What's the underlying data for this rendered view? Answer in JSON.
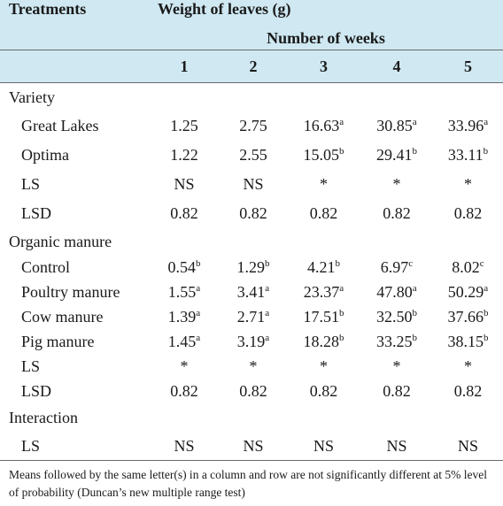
{
  "header": {
    "treatments": "Treatments",
    "title": "Weight of leaves (g)",
    "subtitle": "Number of weeks",
    "weeks": [
      "1",
      "2",
      "3",
      "4",
      "5"
    ]
  },
  "sections": [
    {
      "label": "Variety",
      "rows": [
        {
          "label": "Great Lakes",
          "cells": [
            {
              "v": "1.25",
              "s": ""
            },
            {
              "v": "2.75",
              "s": ""
            },
            {
              "v": "16.63",
              "s": "a"
            },
            {
              "v": "30.85",
              "s": "a"
            },
            {
              "v": "33.96",
              "s": "a"
            }
          ]
        },
        {
          "label": "Optima",
          "cells": [
            {
              "v": "1.22",
              "s": ""
            },
            {
              "v": "2.55",
              "s": ""
            },
            {
              "v": "15.05",
              "s": "b"
            },
            {
              "v": "29.41",
              "s": "b"
            },
            {
              "v": "33.11",
              "s": "b"
            }
          ]
        },
        {
          "label": "LS",
          "cells": [
            {
              "v": "NS",
              "s": ""
            },
            {
              "v": "NS",
              "s": ""
            },
            {
              "v": "*",
              "s": ""
            },
            {
              "v": "*",
              "s": ""
            },
            {
              "v": "*",
              "s": ""
            }
          ]
        },
        {
          "label": "LSD",
          "cells": [
            {
              "v": "0.82",
              "s": ""
            },
            {
              "v": "0.82",
              "s": ""
            },
            {
              "v": "0.82",
              "s": ""
            },
            {
              "v": "0.82",
              "s": ""
            },
            {
              "v": "0.82",
              "s": ""
            }
          ]
        }
      ]
    },
    {
      "label": "Organic manure",
      "rows": [
        {
          "label": "Control",
          "cells": [
            {
              "v": "0.54",
              "s": "b"
            },
            {
              "v": "1.29",
              "s": "b"
            },
            {
              "v": "4.21",
              "s": "b"
            },
            {
              "v": "6.97",
              "s": "c"
            },
            {
              "v": "8.02",
              "s": "c"
            }
          ]
        },
        {
          "label": "Poultry manure",
          "cells": [
            {
              "v": "1.55",
              "s": "a"
            },
            {
              "v": "3.41",
              "s": "a"
            },
            {
              "v": "23.37",
              "s": "a"
            },
            {
              "v": "47.80",
              "s": "a"
            },
            {
              "v": "50.29",
              "s": "a"
            }
          ]
        },
        {
          "label": "Cow manure",
          "cells": [
            {
              "v": "1.39",
              "s": "a"
            },
            {
              "v": "2.71",
              "s": "a"
            },
            {
              "v": "17.51",
              "s": "b"
            },
            {
              "v": "32.50",
              "s": "b"
            },
            {
              "v": "37.66",
              "s": "b"
            }
          ]
        },
        {
          "label": "Pig manure",
          "cells": [
            {
              "v": "1.45",
              "s": "a"
            },
            {
              "v": "3.19",
              "s": "a"
            },
            {
              "v": "18.28",
              "s": "b"
            },
            {
              "v": "33.25",
              "s": "b"
            },
            {
              "v": "38.15",
              "s": "b"
            }
          ]
        },
        {
          "label": "LS",
          "cells": [
            {
              "v": "*",
              "s": ""
            },
            {
              "v": "*",
              "s": ""
            },
            {
              "v": "*",
              "s": ""
            },
            {
              "v": "*",
              "s": ""
            },
            {
              "v": "*",
              "s": ""
            }
          ]
        },
        {
          "label": "LSD",
          "cells": [
            {
              "v": "0.82",
              "s": ""
            },
            {
              "v": "0.82",
              "s": ""
            },
            {
              "v": "0.82",
              "s": ""
            },
            {
              "v": "0.82",
              "s": ""
            },
            {
              "v": "0.82",
              "s": ""
            }
          ]
        }
      ]
    },
    {
      "label": "Interaction",
      "rows": [
        {
          "label": "LS",
          "cells": [
            {
              "v": "NS",
              "s": ""
            },
            {
              "v": "NS",
              "s": ""
            },
            {
              "v": "NS",
              "s": ""
            },
            {
              "v": "NS",
              "s": ""
            },
            {
              "v": "NS",
              "s": ""
            }
          ]
        }
      ]
    }
  ],
  "footnote": "Means followed by the same letter(s) in a column and row are not significantly different at 5% level of probability (Duncan’s new multiple range test)"
}
